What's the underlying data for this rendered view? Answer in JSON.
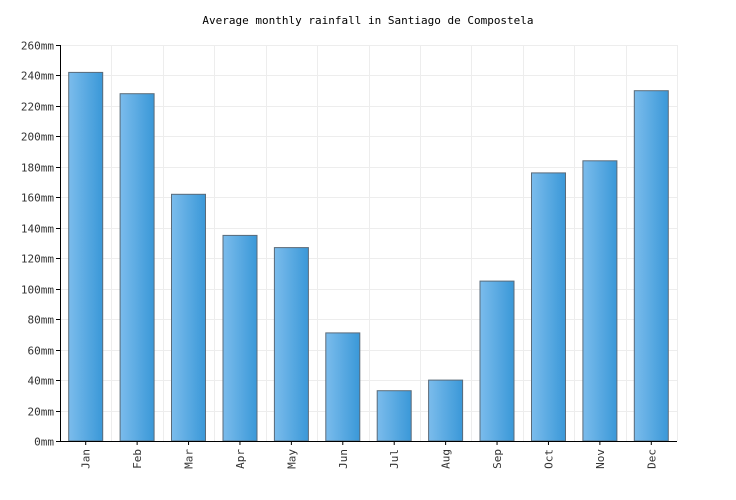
{
  "chart_data": {
    "type": "bar",
    "title": "Average monthly rainfall in Santiago de Compostela",
    "xlabel": "",
    "ylabel": "",
    "categories": [
      "Jan",
      "Feb",
      "Mar",
      "Apr",
      "May",
      "Jun",
      "Jul",
      "Aug",
      "Sep",
      "Oct",
      "Nov",
      "Dec"
    ],
    "values": [
      242,
      228,
      162,
      135,
      127,
      71,
      33,
      40,
      105,
      176,
      184,
      230
    ],
    "ylim": [
      0,
      260
    ],
    "yticks": [
      0,
      20,
      40,
      60,
      80,
      100,
      120,
      140,
      160,
      180,
      200,
      220,
      240,
      260
    ],
    "y_unit": "mm",
    "grid": true,
    "legend": "none",
    "colors": {
      "bar_light": "#7bbcec",
      "bar_dark": "#3a98d8",
      "bar_stroke": "#5a6a78",
      "grid": "#ededed",
      "axis": "#000000"
    }
  }
}
